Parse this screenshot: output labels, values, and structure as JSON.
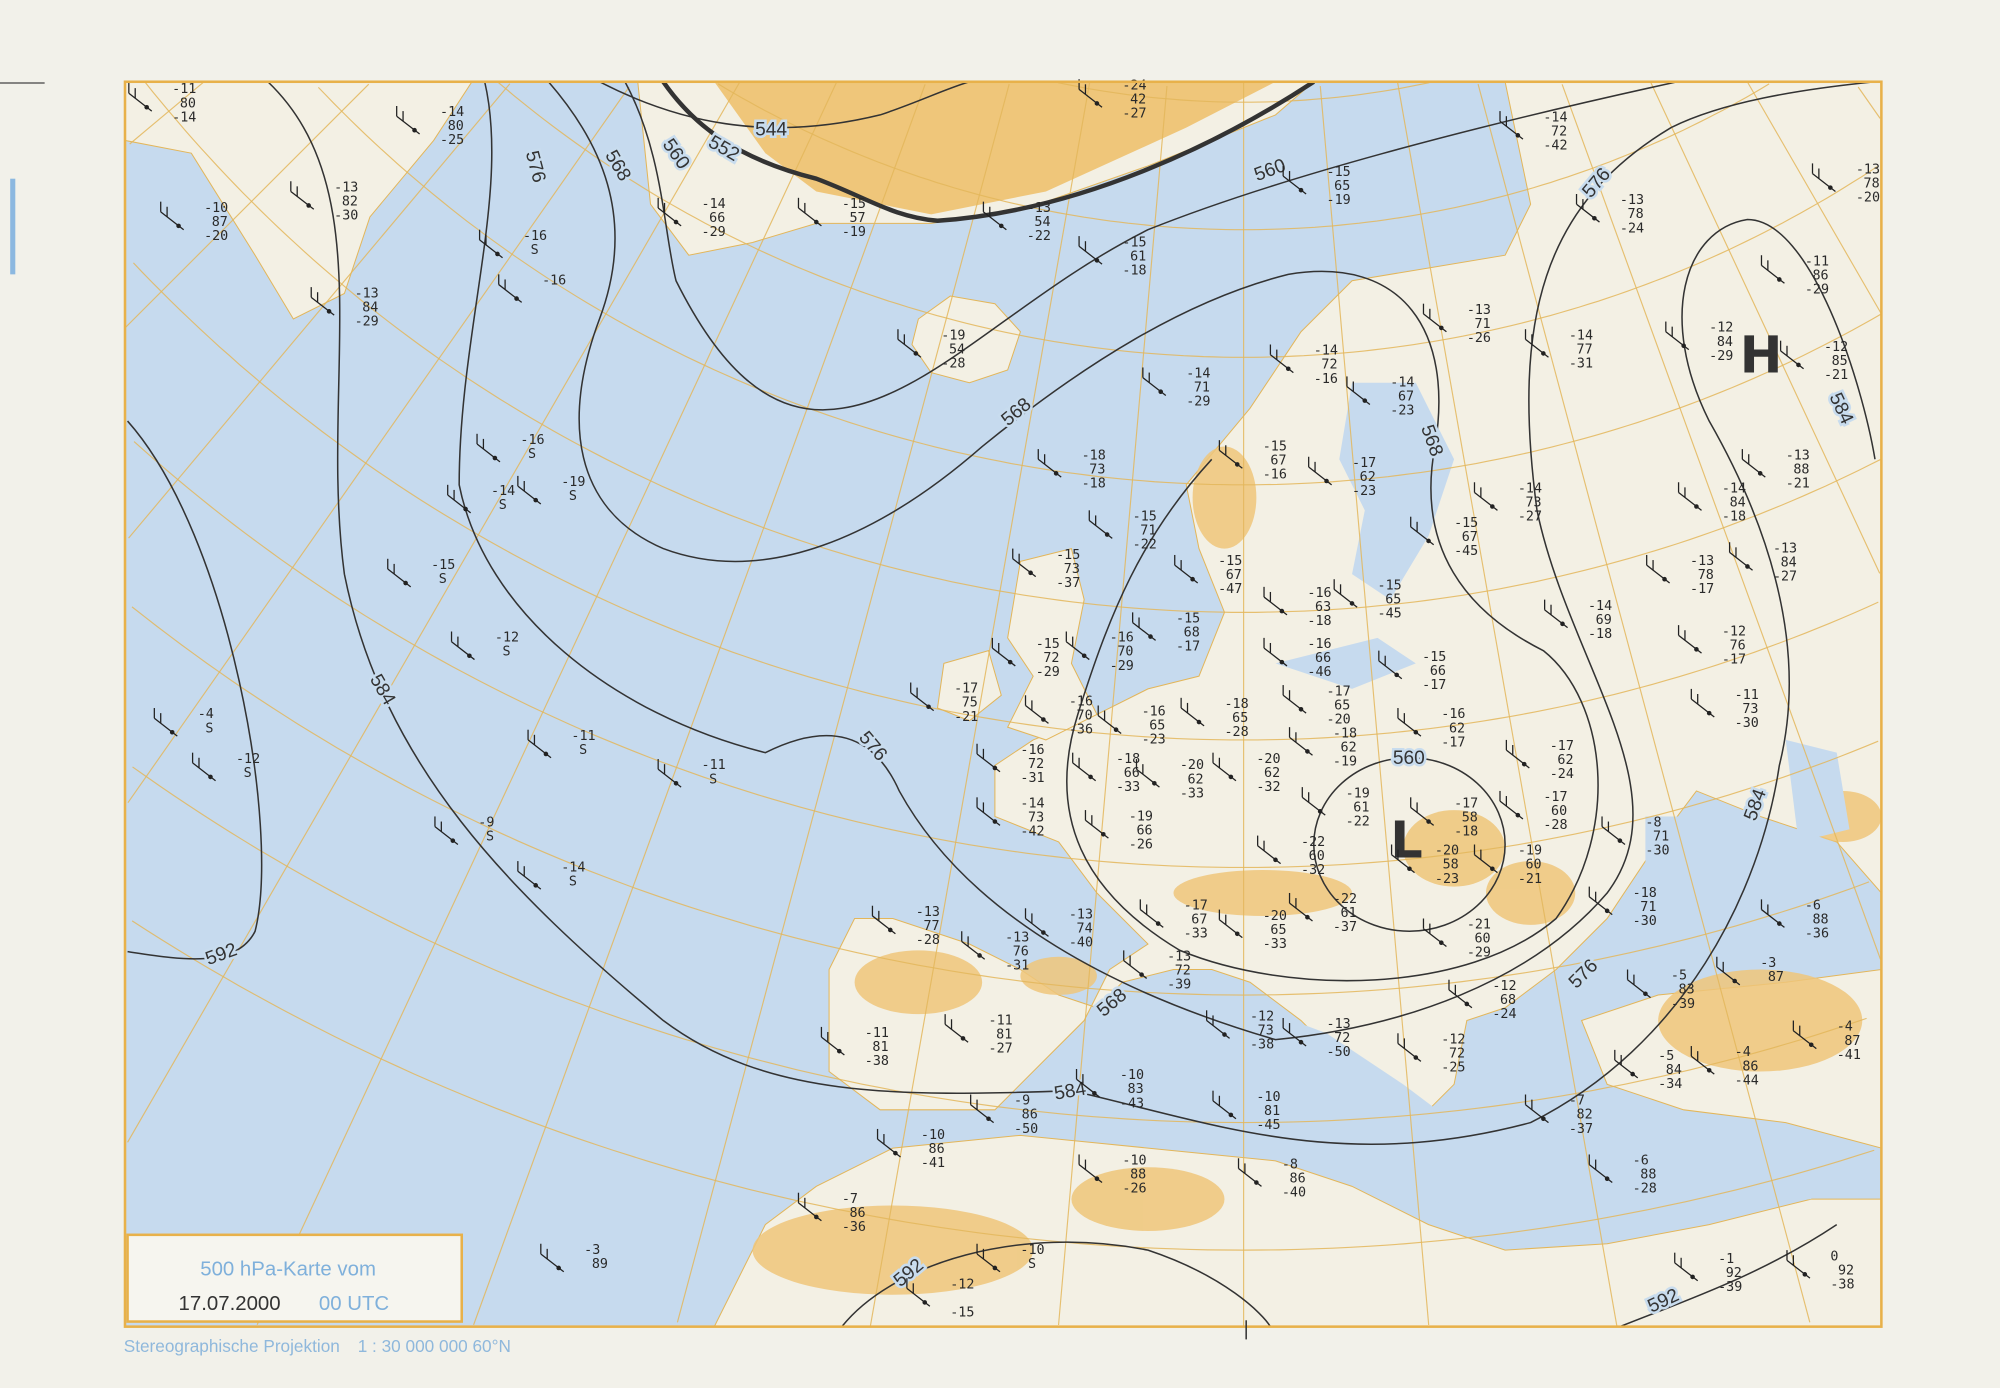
{
  "legend": {
    "title": "500 hPa-Karte vom",
    "date": "17.07.2000",
    "time": "00 UTC"
  },
  "footer": {
    "projection": "Stereographische Projektion",
    "scale": "1 : 30 000 000  60°N"
  },
  "colors": {
    "sea": "#c6daee",
    "land": "#f3f0e4",
    "highland": "#efc67a",
    "graticule": "#e3b65a",
    "frame": "#e8b14a",
    "contour": "#333333",
    "label_blue": "#7fb0db"
  },
  "pressure_centers": [
    {
      "label": "H"
    },
    {
      "label": "L"
    }
  ],
  "contours": [
    {
      "value": "544"
    },
    {
      "value": "552"
    },
    {
      "value": "560"
    },
    {
      "value": "568"
    },
    {
      "value": "576"
    },
    {
      "value": "584"
    },
    {
      "value": "592"
    },
    {
      "value": "560"
    },
    {
      "value": "592"
    },
    {
      "value": "592"
    }
  ],
  "contour_extra_labels": [
    "560",
    "576",
    "576",
    "576",
    "584",
    "584",
    "584",
    "568",
    "568",
    "568"
  ],
  "stations": [
    {
      "t": "-11",
      "h": "80",
      "d": "-14"
    },
    {
      "t": "-14",
      "h": "80",
      "d": "-25"
    },
    {
      "t": "-10",
      "h": "87",
      "d": "-20"
    },
    {
      "t": "-13",
      "h": "82",
      "d": "-30"
    },
    {
      "t": "-13",
      "h": "84",
      "d": "-29"
    },
    {
      "t": "-14",
      "h": "66",
      "d": "-29"
    },
    {
      "t": "-15",
      "h": "57",
      "d": "-19"
    },
    {
      "t": "-13",
      "h": "54",
      "d": "-22"
    },
    {
      "t": "-24",
      "h": "42",
      "d": "-27"
    },
    {
      "t": "-15",
      "h": "65",
      "d": "-19"
    },
    {
      "t": "-15",
      "h": "61",
      "d": "-18"
    },
    {
      "t": "-19",
      "h": "54",
      "d": "-28"
    },
    {
      "t": "-14",
      "h": "71",
      "d": "-29"
    },
    {
      "t": "-14",
      "h": "72",
      "d": "-16"
    },
    {
      "t": "-14",
      "h": "67",
      "d": "-23"
    },
    {
      "t": "-13",
      "h": "71",
      "d": "-26"
    },
    {
      "t": "-14",
      "h": "77",
      "d": "-31"
    },
    {
      "t": "-14",
      "h": "72",
      "d": "-42"
    },
    {
      "t": "-13",
      "h": "78",
      "d": "-24"
    },
    {
      "t": "-13",
      "h": "78",
      "d": "-20"
    },
    {
      "t": "-11",
      "h": "86",
      "d": "-29"
    },
    {
      "t": "-12",
      "h": "84",
      "d": "-29"
    },
    {
      "t": "-12",
      "h": "85",
      "d": "-21"
    },
    {
      "t": "-18",
      "h": "73",
      "d": "-18"
    },
    {
      "t": "-15",
      "h": "67",
      "d": "-16"
    },
    {
      "t": "-17",
      "h": "62",
      "d": "-23"
    },
    {
      "t": "-14",
      "h": "73",
      "d": "-27"
    },
    {
      "t": "-13",
      "h": "88",
      "d": "-21"
    },
    {
      "t": "-14",
      "h": "84",
      "d": "-18"
    },
    {
      "t": "-15",
      "h": "71",
      "d": "-22"
    },
    {
      "t": "-15",
      "h": "67",
      "d": "-45"
    },
    {
      "t": "-15",
      "h": "73",
      "d": "-37"
    },
    {
      "t": "-15",
      "h": "67",
      "d": "-47"
    },
    {
      "t": "-15",
      "h": "65",
      "d": "-45"
    },
    {
      "t": "-16",
      "h": "63",
      "d": "-18"
    },
    {
      "t": "-13",
      "h": "78",
      "d": "-17"
    },
    {
      "t": "-13",
      "h": "84",
      "d": "-27"
    },
    {
      "t": "-14",
      "h": "69",
      "d": "-18"
    },
    {
      "t": "-15",
      "h": "68",
      "d": "-17"
    },
    {
      "t": "-16",
      "h": "70",
      "d": "-29"
    },
    {
      "t": "-15",
      "h": "72",
      "d": "-29"
    },
    {
      "t": "-16",
      "h": "66",
      "d": "-46"
    },
    {
      "t": "-15",
      "h": "66",
      "d": "-17"
    },
    {
      "t": "-12",
      "h": "76",
      "d": "-17"
    },
    {
      "t": "-17",
      "h": "65",
      "d": "-20"
    },
    {
      "t": "-17",
      "h": "75",
      "d": "-21"
    },
    {
      "t": "-16",
      "h": "70",
      "d": "-36"
    },
    {
      "t": "-16",
      "h": "65",
      "d": "-23"
    },
    {
      "t": "-18",
      "h": "65",
      "d": "-28"
    },
    {
      "t": "-18",
      "h": "62",
      "d": "-19"
    },
    {
      "t": "-16",
      "h": "62",
      "d": "-17"
    },
    {
      "t": "-11",
      "h": "73",
      "d": "-30"
    },
    {
      "t": "-16",
      "h": "72",
      "d": "-31"
    },
    {
      "t": "-18",
      "h": "66",
      "d": "-33"
    },
    {
      "t": "-20",
      "h": "62",
      "d": "-33"
    },
    {
      "t": "-20",
      "h": "62",
      "d": "-32"
    },
    {
      "t": "-17",
      "h": "62",
      "d": "-24"
    },
    {
      "t": "-19",
      "h": "61",
      "d": "-22"
    },
    {
      "t": "-17",
      "h": "58",
      "d": "-18"
    },
    {
      "t": "-17",
      "h": "60",
      "d": "-28"
    },
    {
      "t": "-14",
      "h": "73",
      "d": "-42"
    },
    {
      "t": "-19",
      "h": "66",
      "d": "-26"
    },
    {
      "t": "-22",
      "h": "60",
      "d": "-32"
    },
    {
      "t": "-20",
      "h": "58",
      "d": "-23"
    },
    {
      "t": "-19",
      "h": "60",
      "d": "-21"
    },
    {
      "t": "-8",
      "h": "71",
      "d": "-30"
    },
    {
      "t": "-22",
      "h": "61",
      "d": "-37"
    },
    {
      "t": "-18",
      "h": "71",
      "d": "-30"
    },
    {
      "t": "-6",
      "h": "88",
      "d": "-36"
    },
    {
      "t": "-13",
      "h": "77",
      "d": "-28"
    },
    {
      "t": "-17",
      "h": "67",
      "d": "-33"
    },
    {
      "t": "-13",
      "h": "74",
      "d": "-40"
    },
    {
      "t": "-13",
      "h": "76",
      "d": "-31"
    },
    {
      "t": "-20",
      "h": "65",
      "d": "-33"
    },
    {
      "t": "-21",
      "h": "60",
      "d": "-29"
    },
    {
      "t": "-13",
      "h": "72",
      "d": "-39"
    },
    {
      "t": "-5",
      "h": "83",
      "d": "-39"
    },
    {
      "t": "-3",
      "h": "87",
      "d": ""
    },
    {
      "t": "-12",
      "h": "68",
      "d": "-24"
    },
    {
      "t": "-12",
      "h": "73",
      "d": "-38"
    },
    {
      "t": "-13",
      "h": "72",
      "d": "-50"
    },
    {
      "t": "-12",
      "h": "72",
      "d": "-25"
    },
    {
      "t": "-11",
      "h": "81",
      "d": "-38"
    },
    {
      "t": "-11",
      "h": "81",
      "d": "-27"
    },
    {
      "t": "-5",
      "h": "84",
      "d": "-34"
    },
    {
      "t": "-4",
      "h": "86",
      "d": "-44"
    },
    {
      "t": "-4",
      "h": "87",
      "d": "-41"
    },
    {
      "t": "-10",
      "h": "83",
      "d": "-43"
    },
    {
      "t": "-10",
      "h": "81",
      "d": "-45"
    },
    {
      "t": "-9",
      "h": "86",
      "d": "-50"
    },
    {
      "t": "-10",
      "h": "86",
      "d": "-41"
    },
    {
      "t": "-7",
      "h": "82",
      "d": "-37"
    },
    {
      "t": "-10",
      "h": "88",
      "d": "-26"
    },
    {
      "t": "-8",
      "h": "86",
      "d": "-40"
    },
    {
      "t": "-6",
      "h": "88",
      "d": "-28"
    },
    {
      "t": "-7",
      "h": "86",
      "d": "-36"
    },
    {
      "t": "-3",
      "h": "89",
      "d": ""
    },
    {
      "t": "-10",
      "h": "S",
      "d": ""
    },
    {
      "t": "-12",
      "h": "",
      "d": "-15"
    },
    {
      "t": "-1",
      "h": "92",
      "d": "-39"
    },
    {
      "t": "0",
      "h": "92",
      "d": "-38"
    },
    {
      "t": "-16",
      "h": "S",
      "d": ""
    },
    {
      "t": "-16",
      "h": "",
      "d": ""
    },
    {
      "t": "-16",
      "h": "S",
      "d": ""
    },
    {
      "t": "-14",
      "h": "S",
      "d": ""
    },
    {
      "t": "-19",
      "h": "S",
      "d": ""
    },
    {
      "t": "-15",
      "h": "S",
      "d": ""
    },
    {
      "t": "-12",
      "h": "S",
      "d": ""
    },
    {
      "t": "-4",
      "h": "S",
      "d": ""
    },
    {
      "t": "-12",
      "h": "S",
      "d": ""
    },
    {
      "t": "-11",
      "h": "S",
      "d": ""
    },
    {
      "t": "-11",
      "h": "S",
      "d": ""
    },
    {
      "t": "-9",
      "h": "S",
      "d": ""
    },
    {
      "t": "-14",
      "h": "S",
      "d": ""
    }
  ]
}
